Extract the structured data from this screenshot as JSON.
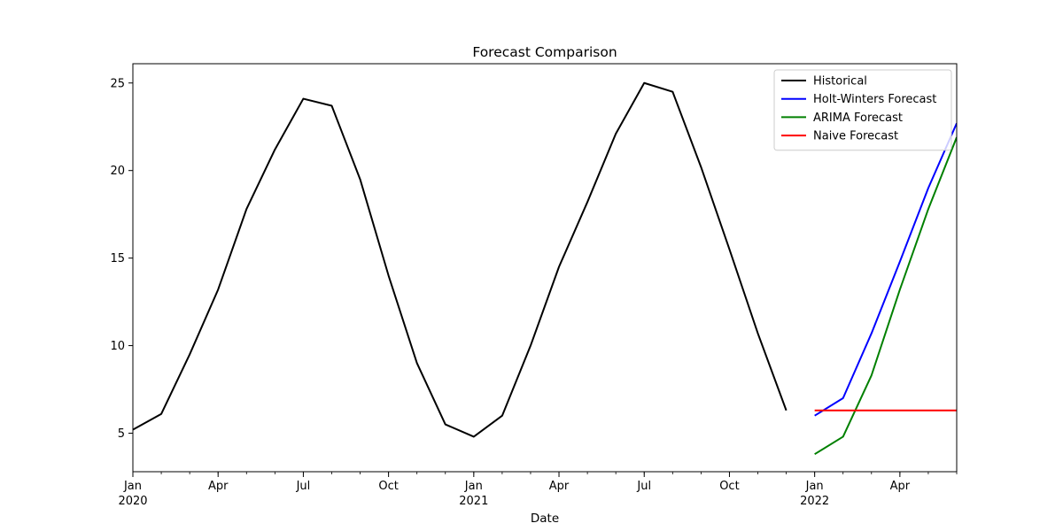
{
  "chart_data": {
    "type": "line",
    "title": "Forecast Comparison",
    "xlabel": "Date",
    "ylabel": "",
    "x_range": [
      "2020-01",
      "2022-06"
    ],
    "ylim": [
      2.8,
      26.1
    ],
    "y_ticks": [
      5,
      10,
      15,
      20,
      25
    ],
    "x_ticks": [
      {
        "date": "2020-01",
        "label": "Jan",
        "year": "2020"
      },
      {
        "date": "2020-04",
        "label": "Apr",
        "year": ""
      },
      {
        "date": "2020-07",
        "label": "Jul",
        "year": ""
      },
      {
        "date": "2020-10",
        "label": "Oct",
        "year": ""
      },
      {
        "date": "2021-01",
        "label": "Jan",
        "year": "2021"
      },
      {
        "date": "2021-04",
        "label": "Apr",
        "year": ""
      },
      {
        "date": "2021-07",
        "label": "Jul",
        "year": ""
      },
      {
        "date": "2021-10",
        "label": "Oct",
        "year": ""
      },
      {
        "date": "2022-01",
        "label": "Jan",
        "year": "2022"
      },
      {
        "date": "2022-04",
        "label": "Apr",
        "year": ""
      }
    ],
    "grid": false,
    "legend_position": "top-right",
    "series": [
      {
        "name": "Historical",
        "color": "#000000",
        "x": [
          "2020-01",
          "2020-02",
          "2020-03",
          "2020-04",
          "2020-05",
          "2020-06",
          "2020-07",
          "2020-08",
          "2020-09",
          "2020-10",
          "2020-11",
          "2020-12",
          "2021-01",
          "2021-02",
          "2021-03",
          "2021-04",
          "2021-05",
          "2021-06",
          "2021-07",
          "2021-08",
          "2021-09",
          "2021-10",
          "2021-11",
          "2021-12"
        ],
        "values": [
          5.2,
          6.1,
          9.5,
          13.2,
          17.8,
          21.2,
          24.1,
          23.7,
          19.5,
          14.0,
          9.0,
          5.5,
          4.8,
          6.0,
          10.0,
          14.5,
          18.2,
          22.1,
          25.0,
          24.5,
          20.2,
          15.5,
          10.7,
          6.3
        ]
      },
      {
        "name": "Holt-Winters Forecast",
        "color": "#0000ff",
        "x": [
          "2022-01",
          "2022-02",
          "2022-03",
          "2022-04",
          "2022-05",
          "2022-06"
        ],
        "values": [
          6.0,
          7.0,
          10.7,
          14.8,
          19.0,
          22.7
        ]
      },
      {
        "name": "ARIMA Forecast",
        "color": "#008000",
        "x": [
          "2022-01",
          "2022-02",
          "2022-03",
          "2022-04",
          "2022-05",
          "2022-06"
        ],
        "values": [
          3.8,
          4.8,
          8.3,
          13.2,
          17.8,
          21.9
        ]
      },
      {
        "name": "Naive Forecast",
        "color": "#ff0000",
        "x": [
          "2022-01",
          "2022-02",
          "2022-03",
          "2022-04",
          "2022-05",
          "2022-06"
        ],
        "values": [
          6.3,
          6.3,
          6.3,
          6.3,
          6.3,
          6.3
        ]
      }
    ]
  }
}
